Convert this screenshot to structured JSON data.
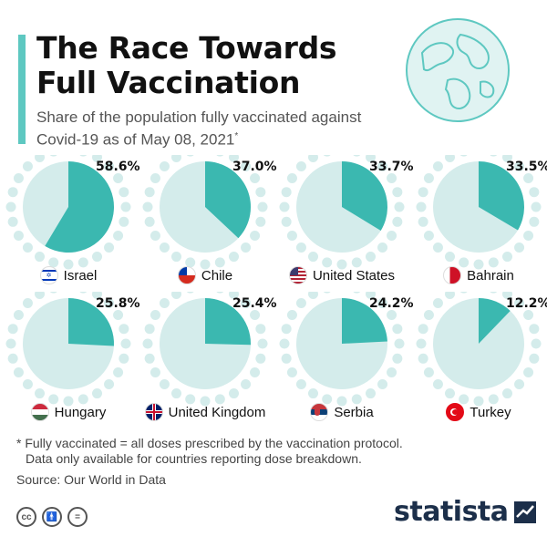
{
  "header": {
    "title_line1": "The Race Towards",
    "title_line2": "Full Vaccination",
    "subtitle": "Share of the population fully vaccinated against Covid-19 as of May 08, 2021",
    "subtitle_marker": "*"
  },
  "chart_data": {
    "type": "pie",
    "title": "The Race Towards Full Vaccination",
    "subtitle": "Share of the population fully vaccinated against Covid-19 as of May 08, 2021",
    "unit": "%",
    "items": [
      {
        "country": "Israel",
        "value": 58.6,
        "label": "58.6%"
      },
      {
        "country": "Chile",
        "value": 37.0,
        "label": "37.0%"
      },
      {
        "country": "United States",
        "value": 33.7,
        "label": "33.7%"
      },
      {
        "country": "Bahrain",
        "value": 33.5,
        "label": "33.5%"
      },
      {
        "country": "Hungary",
        "value": 25.8,
        "label": "25.8%"
      },
      {
        "country": "United Kingdom",
        "value": 25.4,
        "label": "25.4%"
      },
      {
        "country": "Serbia",
        "value": 24.2,
        "label": "24.2%"
      },
      {
        "country": "Turkey",
        "value": 12.2,
        "label": "12.2%"
      }
    ],
    "colors": {
      "filled": "#3bb8b0",
      "remaining": "#d4eceb",
      "dots": "#d4eceb"
    }
  },
  "footer": {
    "footnote_line1": "* Fully vaccinated = all doses prescribed by the vaccination protocol.",
    "footnote_line2": "Data only available for countries reporting dose breakdown.",
    "source": "Source: Our World in Data",
    "brand": "statista",
    "license_icons": [
      "cc-icon",
      "by-icon",
      "nd-icon"
    ]
  }
}
